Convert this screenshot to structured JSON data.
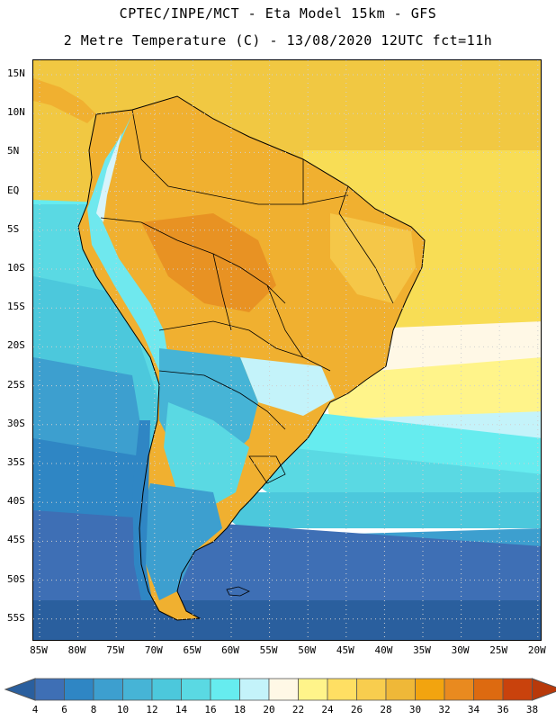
{
  "title_line1": "CPTEC/INPE/MCT -  Eta Model 15km - GFS",
  "title_line2": "2 Metre Temperature (C) - 13/08/2020 12UTC fct=11h",
  "lat_labels": [
    "15N",
    "10N",
    "5N",
    "EQ",
    "5S",
    "10S",
    "15S",
    "20S",
    "25S",
    "30S",
    "35S",
    "40S",
    "45S",
    "50S",
    "55S"
  ],
  "lon_labels": [
    "85W",
    "80W",
    "75W",
    "70W",
    "65W",
    "60W",
    "55W",
    "50W",
    "45W",
    "40W",
    "35W",
    "30W",
    "25W",
    "20W"
  ],
  "colorbar": {
    "labels": [
      "4",
      "6",
      "8",
      "10",
      "12",
      "14",
      "16",
      "18",
      "20",
      "22",
      "24",
      "26",
      "28",
      "30",
      "32",
      "34",
      "36",
      "38"
    ],
    "colors": [
      "#3e6fb5",
      "#2f86c4",
      "#3d9fcf",
      "#46b4d6",
      "#4cc8dc",
      "#5ad9e3",
      "#66ecef",
      "#c4f3fa",
      "#fff8e6",
      "#fff48a",
      "#ffdf63",
      "#f8cd4e",
      "#efb838",
      "#f2a40f",
      "#e98a1f",
      "#dd6a10",
      "#c9420c"
    ],
    "low_color": "#2a5f9e",
    "high_color": "#b8390a"
  },
  "map": {
    "ocean_colors": {
      "tropical_north": "#f1c842",
      "tropical_east": "#f8dd55",
      "subtropical_east": "#fff8e6",
      "band_22": "#fff48a",
      "band_18": "#c4f3fa",
      "band_16": "#66ecef",
      "band_14": "#5ad9e3",
      "band_12": "#4cc8dc",
      "band_10": "#3d9fcf",
      "band_8": "#2f86c4",
      "band_6": "#3e6fb5",
      "deep_south": "#2a5f9e"
    },
    "land_colors": {
      "amazon": "#f0b030",
      "hot_core": "#e89223",
      "northeast": "#f5c748",
      "andes_cold": "#6fe8ee",
      "andes_snow": "#d8f4fb",
      "south_brazil": "#c4f3fa",
      "argentina_north": "#46b4d6",
      "argentina_center": "#5ad9e3",
      "patagonia": "#3d9fcf",
      "chile_coast": "#2f86c4"
    },
    "coastline_color": "#000000",
    "grid_color": "#d0d0d0"
  }
}
